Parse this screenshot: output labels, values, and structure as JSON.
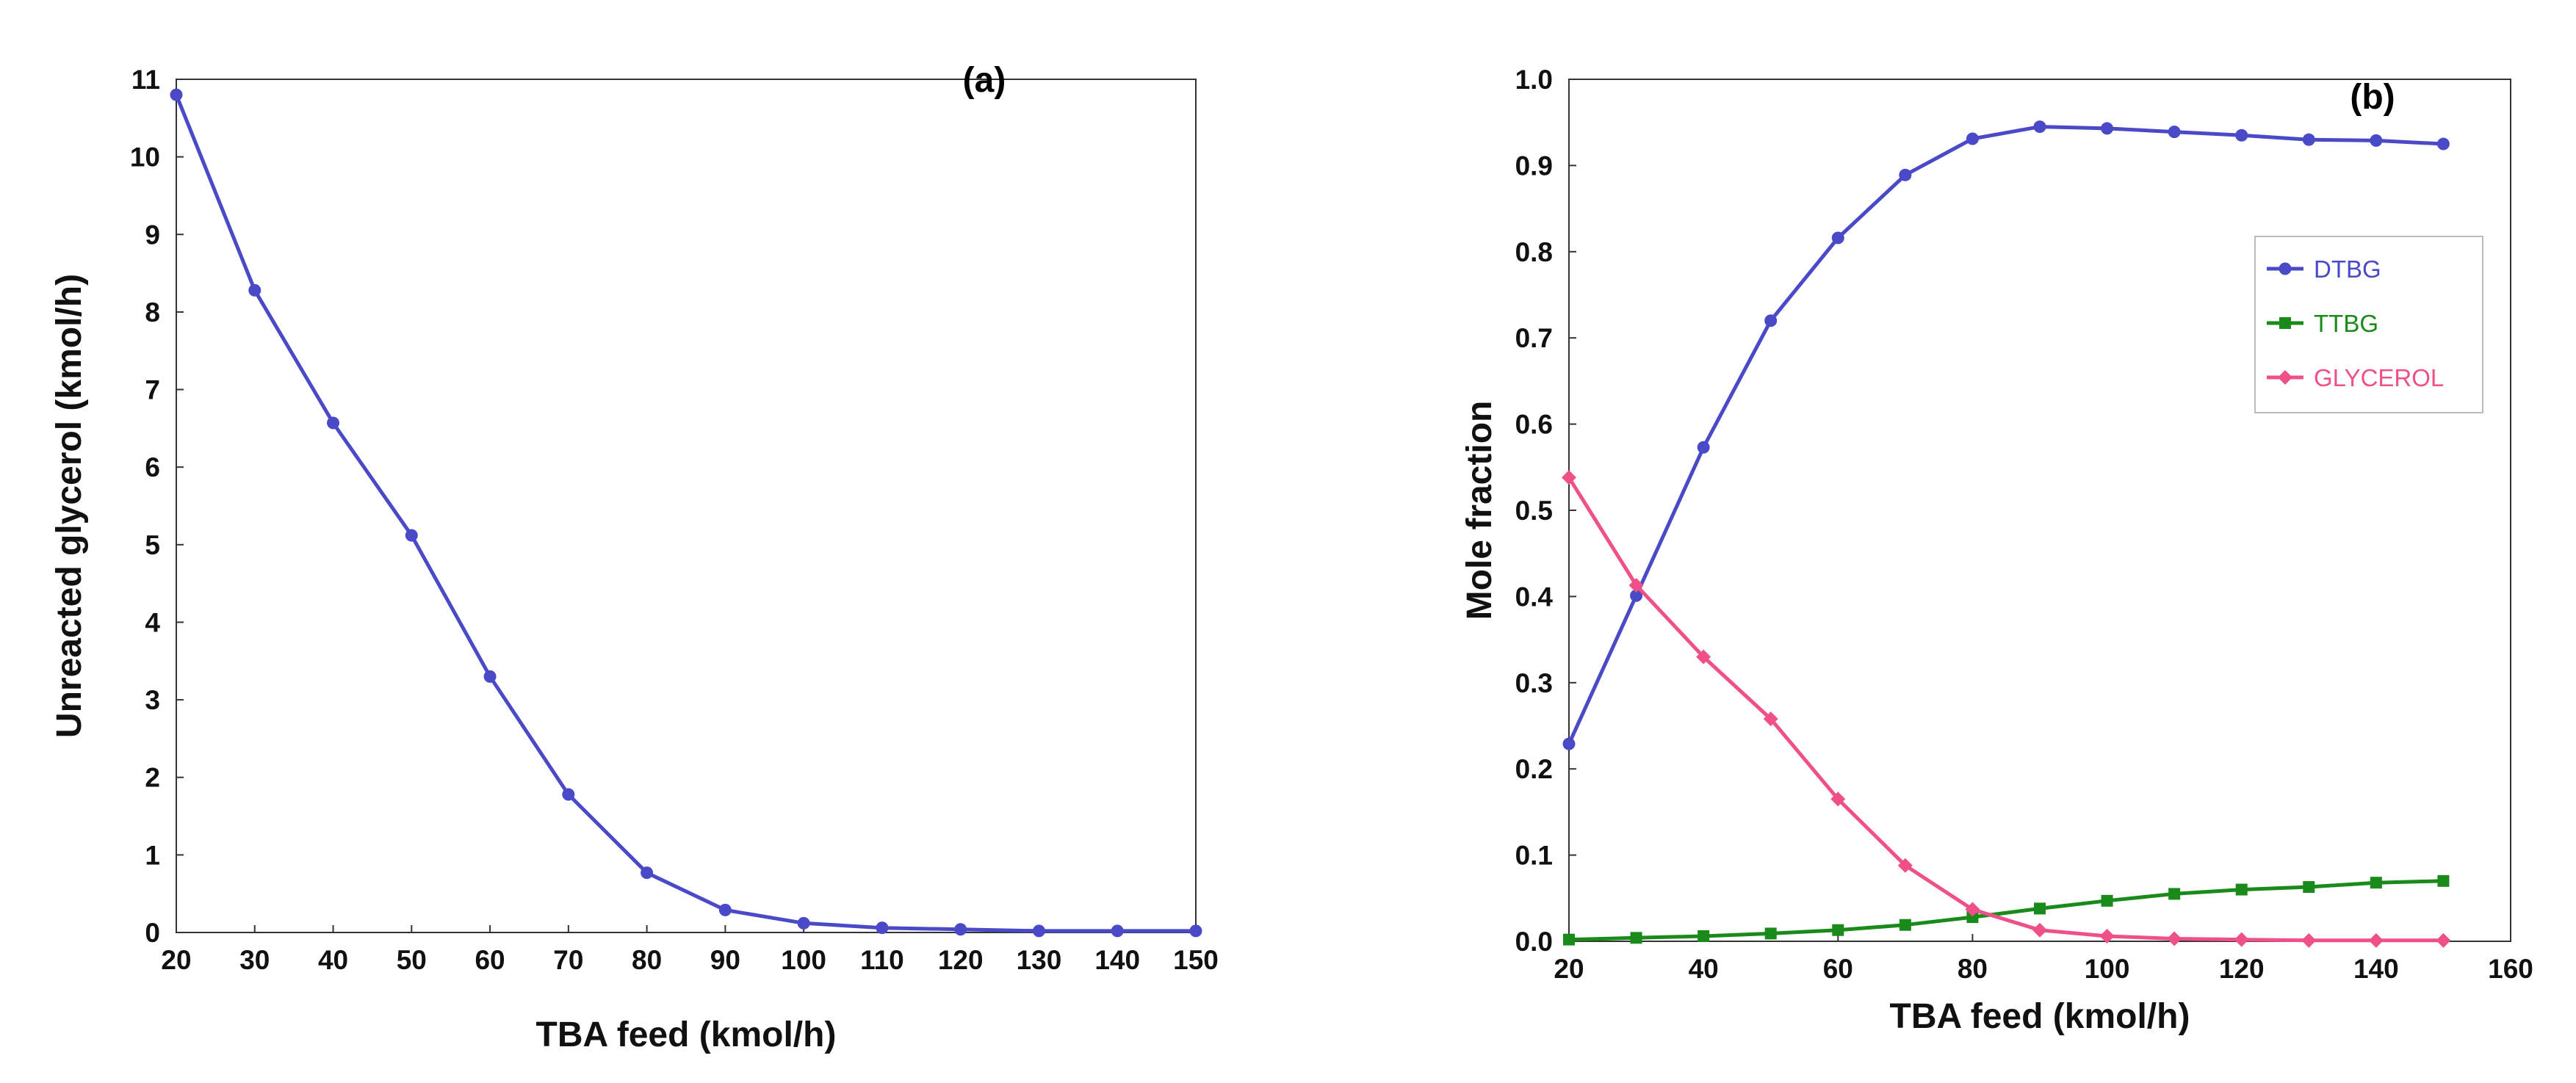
{
  "chart_data": [
    {
      "type": "line",
      "panel_label": "(a)",
      "xlabel": "TBA feed (kmol/h)",
      "ylabel": "Unreacted glycerol (kmol/h)",
      "xlim": [
        20,
        150
      ],
      "ylim": [
        0,
        11
      ],
      "xticks": [
        20,
        30,
        40,
        50,
        60,
        70,
        80,
        90,
        100,
        110,
        120,
        130,
        140,
        150
      ],
      "yticks": [
        0,
        1,
        2,
        3,
        4,
        5,
        6,
        7,
        8,
        9,
        10,
        11
      ],
      "grid": false,
      "series": [
        {
          "name": "Unreacted glycerol",
          "color": "#4a4ac8",
          "marker": "circle",
          "x": [
            20,
            30,
            40,
            50,
            60,
            70,
            80,
            90,
            100,
            110,
            120,
            130,
            140,
            150
          ],
          "y": [
            10.8,
            8.28,
            6.57,
            5.12,
            3.3,
            1.78,
            0.77,
            0.29,
            0.12,
            0.06,
            0.04,
            0.02,
            0.02,
            0.02
          ]
        }
      ]
    },
    {
      "type": "line",
      "panel_label": "(b)",
      "xlabel": "TBA feed (kmol/h)",
      "ylabel": "Mole fraction",
      "xlim": [
        20,
        160
      ],
      "ylim": [
        0,
        1.0
      ],
      "xticks": [
        20,
        40,
        60,
        80,
        100,
        120,
        140,
        160
      ],
      "yticks": [
        0.0,
        0.1,
        0.2,
        0.3,
        0.4,
        0.5,
        0.6,
        0.7,
        0.8,
        0.9,
        1.0
      ],
      "ytick_labels": [
        "0.0",
        "0.1",
        "0.2",
        "0.3",
        "0.4",
        "0.5",
        "0.6",
        "0.7",
        "0.8",
        "0.9",
        "1.0"
      ],
      "grid": false,
      "legend_position": "upper-right",
      "series": [
        {
          "name": "DTBG",
          "color": "#4a4ac8",
          "marker": "circle",
          "x": [
            20,
            30,
            40,
            50,
            60,
            70,
            80,
            90,
            100,
            110,
            120,
            130,
            140,
            150
          ],
          "y": [
            0.229,
            0.401,
            0.573,
            0.72,
            0.816,
            0.889,
            0.931,
            0.945,
            0.943,
            0.939,
            0.935,
            0.93,
            0.929,
            0.925
          ]
        },
        {
          "name": "TTBG",
          "color": "#1a8a1a",
          "marker": "square",
          "x": [
            20,
            30,
            40,
            50,
            60,
            70,
            80,
            90,
            100,
            110,
            120,
            130,
            140,
            150
          ],
          "y": [
            0.002,
            0.004,
            0.006,
            0.009,
            0.013,
            0.019,
            0.028,
            0.038,
            0.047,
            0.055,
            0.06,
            0.063,
            0.068,
            0.07
          ]
        },
        {
          "name": "GLYCEROL",
          "color": "#f0508a",
          "marker": "diamond",
          "x": [
            20,
            30,
            40,
            50,
            60,
            70,
            80,
            90,
            100,
            110,
            120,
            130,
            140,
            150
          ],
          "y": [
            0.538,
            0.413,
            0.33,
            0.258,
            0.165,
            0.088,
            0.037,
            0.013,
            0.006,
            0.003,
            0.002,
            0.001,
            0.001,
            0.001
          ]
        }
      ]
    }
  ]
}
